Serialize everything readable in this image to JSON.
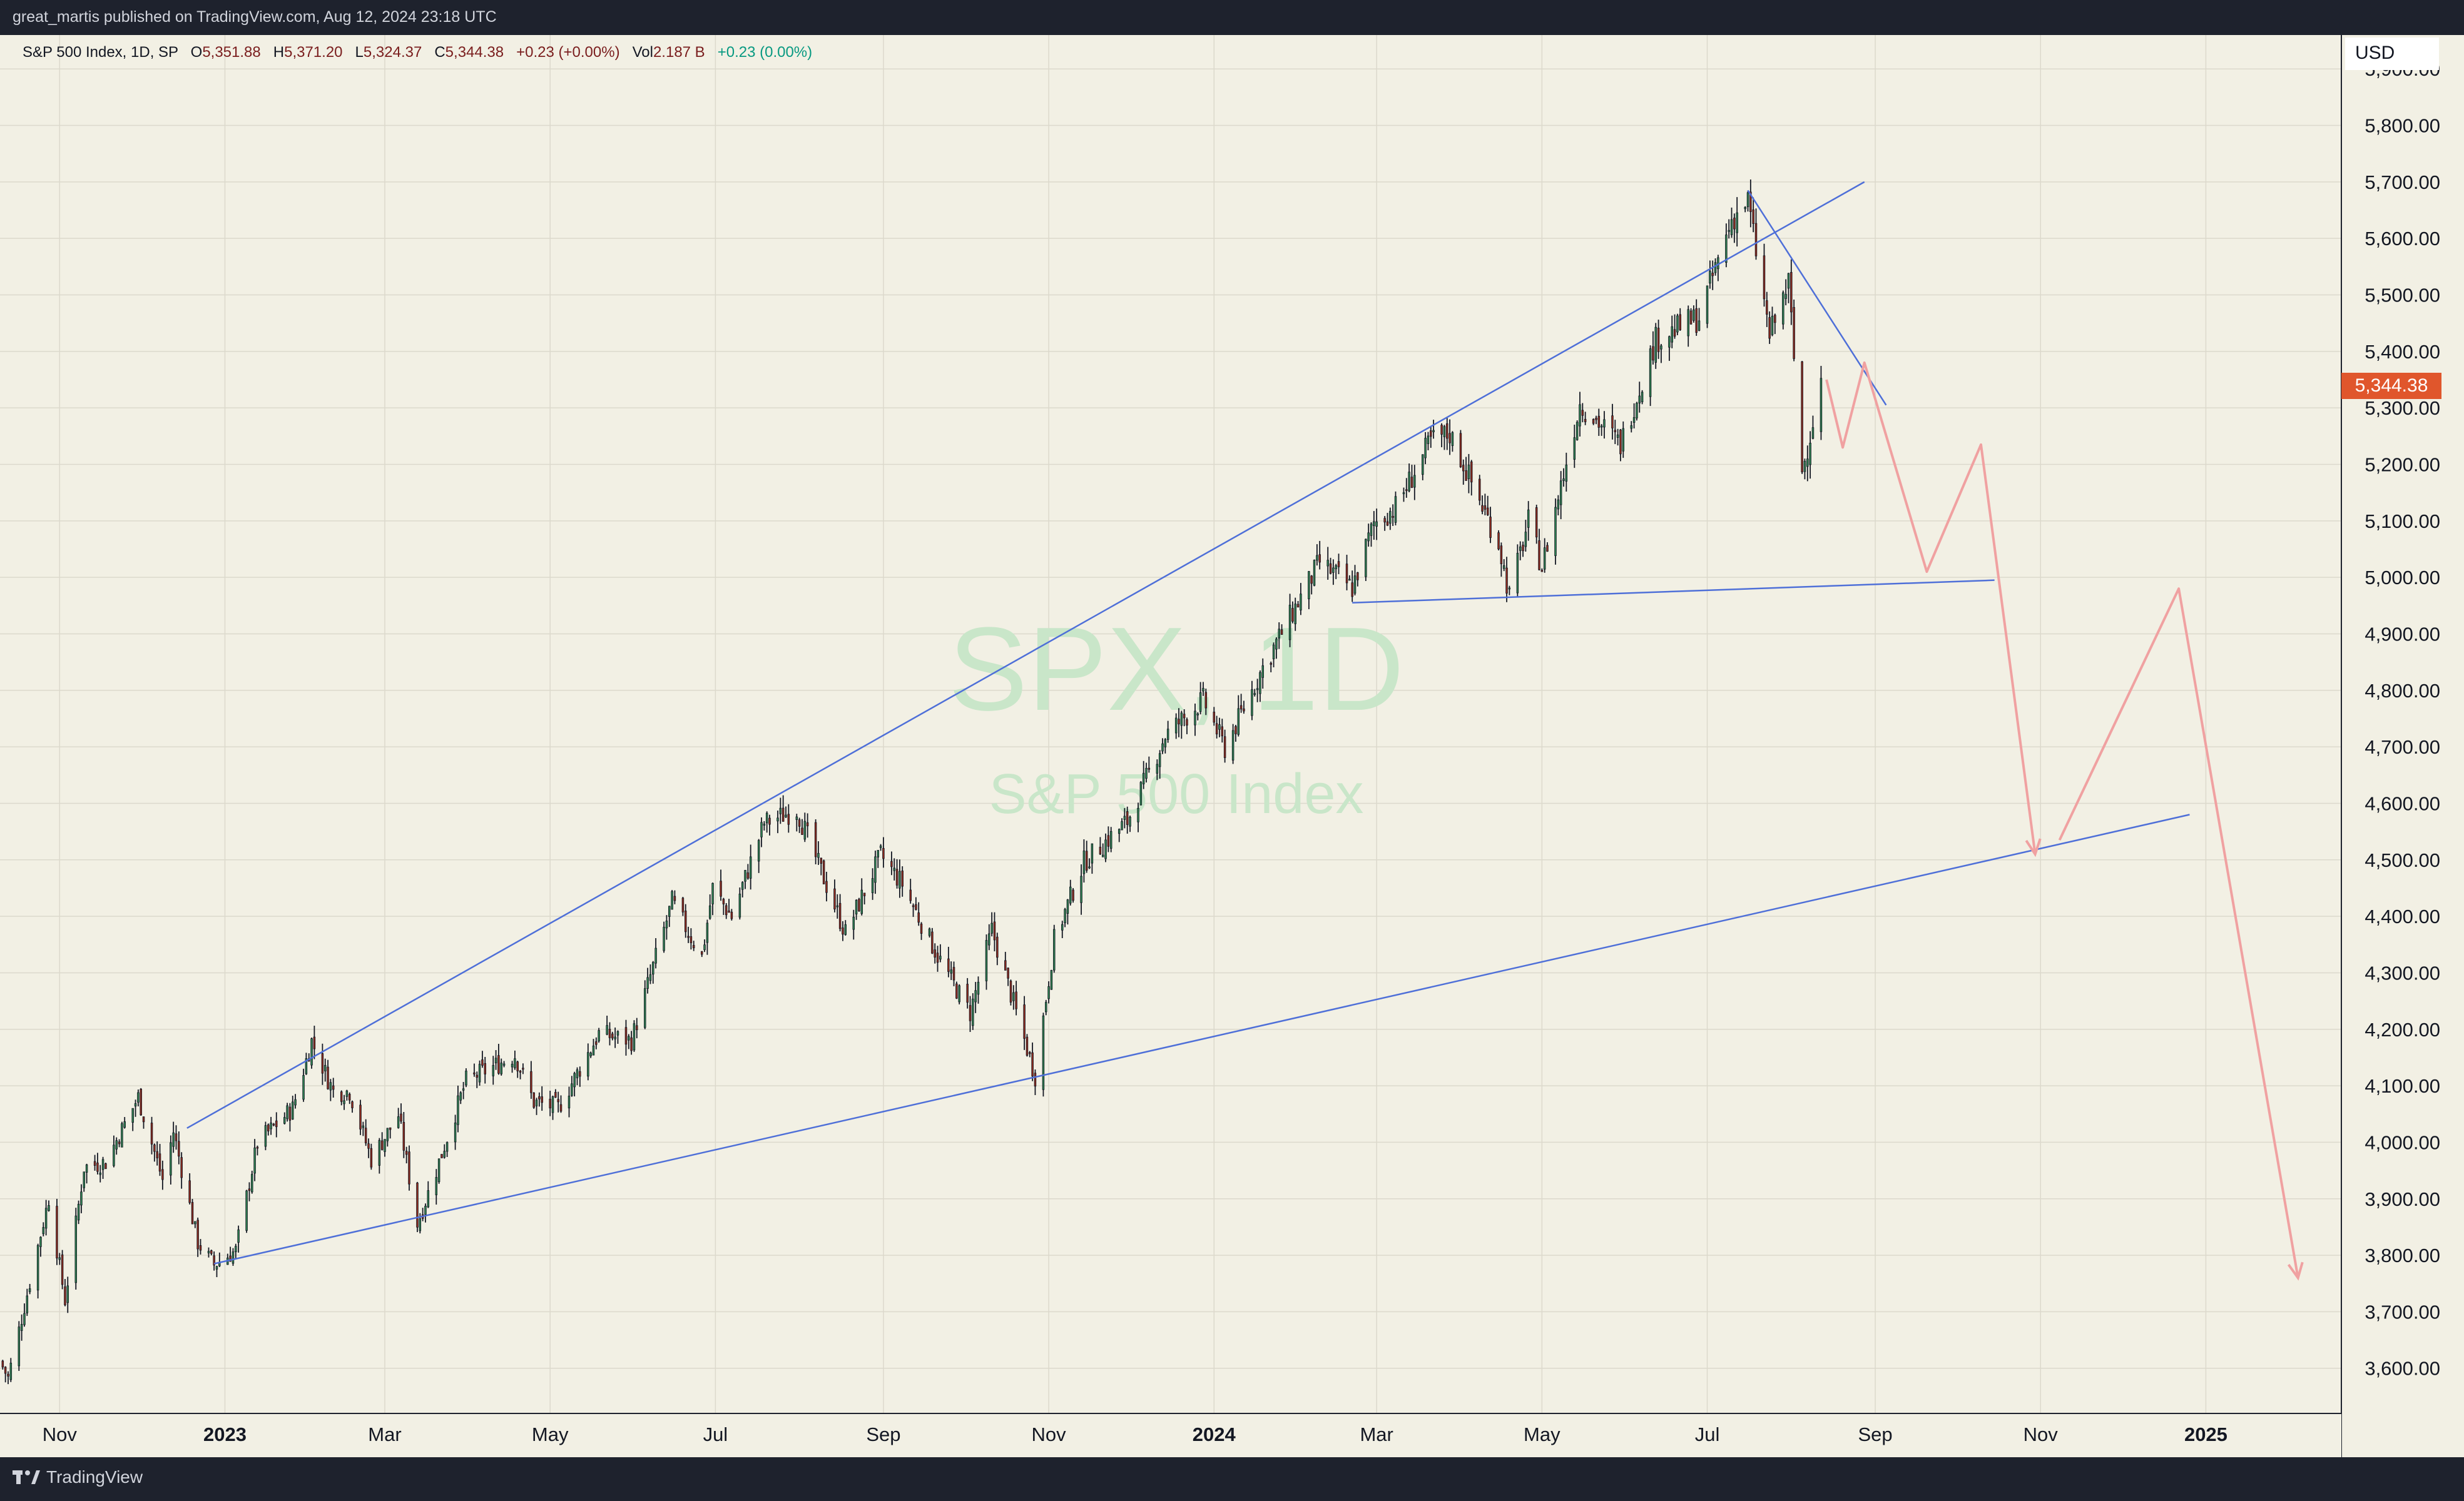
{
  "header": {
    "attribution": "great_martis published on TradingView.com, Aug 12, 2024 23:18 UTC"
  },
  "legend": {
    "symbol": "S&P 500 Index, 1D, SP",
    "open_label": "O",
    "open": "5,351.88",
    "high_label": "H",
    "high": "5,371.20",
    "low_label": "L",
    "low": "5,324.37",
    "close_label": "C",
    "close": "5,344.38",
    "change": "+0.23 (+0.00%)",
    "vol_label": "Vol",
    "vol": "2.187 B",
    "change2": "+0.23 (0.00%)"
  },
  "price_axis": {
    "currency": "USD",
    "current_price": "5,344.38"
  },
  "watermark": {
    "ticker": "SPX, 1D",
    "name": "S&P 500 Index"
  },
  "footer": {
    "brand": "TradingView"
  },
  "colors": {
    "background": "#f2f0e4",
    "grid": "#dcd9cc",
    "up": "#2e7d4f",
    "down": "#8b2a1e",
    "trendline": "#4e6fd8",
    "projection": "#f0a1a1",
    "price_badge": "#e0562c",
    "watermark": "#c9e6c9"
  },
  "chart_data": {
    "type": "candlestick",
    "title": "S&P 500 Index, 1D, SP",
    "x_tick_labels": [
      "Nov",
      "2023",
      "Mar",
      "May",
      "Jul",
      "Sep",
      "Nov",
      "2024",
      "Mar",
      "May",
      "Jul",
      "Sep",
      "Nov",
      "2025"
    ],
    "x_ticks": [
      "2022-11-01",
      "2023-01-01",
      "2023-03-01",
      "2023-05-01",
      "2023-07-01",
      "2023-09-01",
      "2023-11-01",
      "2024-01-01",
      "2024-03-01",
      "2024-05-01",
      "2024-07-01",
      "2024-09-01",
      "2024-11-01",
      "2025-01-01"
    ],
    "y_tick_labels": [
      "3,600.00",
      "3,700.00",
      "3,800.00",
      "3,900.00",
      "4,000.00",
      "4,100.00",
      "4,200.00",
      "4,300.00",
      "4,400.00",
      "4,500.00",
      "4,600.00",
      "4,700.00",
      "4,800.00",
      "4,900.00",
      "5,000.00",
      "5,100.00",
      "5,200.00",
      "5,300.00",
      "5,400.00",
      "5,500.00",
      "5,600.00",
      "5,700.00",
      "5,800.00",
      "5,900.00"
    ],
    "xlim": [
      "2022-10-10",
      "2025-02-20"
    ],
    "ylim": [
      3520,
      5960
    ],
    "grid": true,
    "close_path": [
      [
        "2022-10-10",
        3612
      ],
      [
        "2022-10-13",
        3583
      ],
      [
        "2022-10-21",
        3752
      ],
      [
        "2022-10-28",
        3901
      ],
      [
        "2022-11-03",
        3720
      ],
      [
        "2022-11-10",
        3956
      ],
      [
        "2022-11-18",
        3965
      ],
      [
        "2022-11-30",
        4080
      ],
      [
        "2022-12-09",
        3934
      ],
      [
        "2022-12-13",
        4019
      ],
      [
        "2022-12-22",
        3822
      ],
      [
        "2022-12-28",
        3783
      ],
      [
        "2023-01-05",
        3808
      ],
      [
        "2023-01-13",
        3999
      ],
      [
        "2023-01-26",
        4060
      ],
      [
        "2023-02-02",
        4179
      ],
      [
        "2023-02-10",
        4090
      ],
      [
        "2023-02-16",
        4090
      ],
      [
        "2023-02-24",
        3970
      ],
      [
        "2023-03-06",
        4048
      ],
      [
        "2023-03-13",
        3855
      ],
      [
        "2023-03-20",
        3951
      ],
      [
        "2023-03-31",
        4109
      ],
      [
        "2023-04-18",
        4154
      ],
      [
        "2023-04-25",
        4071
      ],
      [
        "2023-05-04",
        4061
      ],
      [
        "2023-05-19",
        4192
      ],
      [
        "2023-05-31",
        4180
      ],
      [
        "2023-06-15",
        4425
      ],
      [
        "2023-06-26",
        4328
      ],
      [
        "2023-06-30",
        4450
      ],
      [
        "2023-07-07",
        4399
      ],
      [
        "2023-07-19",
        4565
      ],
      [
        "2023-07-31",
        4589
      ],
      [
        "2023-08-18",
        4370
      ],
      [
        "2023-08-31",
        4508
      ],
      [
        "2023-09-08",
        4457
      ],
      [
        "2023-09-21",
        4330
      ],
      [
        "2023-10-03",
        4229
      ],
      [
        "2023-10-11",
        4376
      ],
      [
        "2023-10-27",
        4117
      ],
      [
        "2023-11-03",
        4358
      ],
      [
        "2023-11-14",
        4496
      ],
      [
        "2023-11-30",
        4568
      ],
      [
        "2023-12-14",
        4720
      ],
      [
        "2023-12-28",
        4783
      ],
      [
        "2024-01-05",
        4697
      ],
      [
        "2024-01-19",
        4840
      ],
      [
        "2024-02-09",
        5027
      ],
      [
        "2024-02-21",
        4981
      ],
      [
        "2024-02-29",
        5096
      ],
      [
        "2024-03-08",
        5124
      ],
      [
        "2024-03-21",
        5241
      ],
      [
        "2024-03-28",
        5254
      ],
      [
        "2024-04-15",
        5061
      ],
      [
        "2024-04-19",
        4967
      ],
      [
        "2024-04-26",
        5099
      ],
      [
        "2024-05-01",
        5018
      ],
      [
        "2024-05-15",
        5308
      ],
      [
        "2024-05-30",
        5235
      ],
      [
        "2024-06-12",
        5421
      ],
      [
        "2024-06-28",
        5460
      ],
      [
        "2024-07-10",
        5633
      ],
      [
        "2024-07-16",
        5667
      ],
      [
        "2024-07-24",
        5427
      ],
      [
        "2024-07-31",
        5522
      ],
      [
        "2024-08-05",
        5186
      ],
      [
        "2024-08-12",
        5344.38
      ]
    ],
    "trendlines": [
      {
        "from": [
          "2022-12-18",
          4025
        ],
        "to": [
          "2024-08-28",
          5700
        ]
      },
      {
        "from": [
          "2022-12-28",
          3785
        ],
        "to": [
          "2024-12-26",
          4580
        ]
      },
      {
        "from": [
          "2024-02-21",
          4955
        ],
        "to": [
          "2024-10-15",
          4995
        ]
      },
      {
        "from": [
          "2024-07-16",
          5685
        ],
        "to": [
          "2024-09-05",
          5305
        ]
      }
    ],
    "projection": [
      [
        "2024-08-14",
        5350
      ],
      [
        "2024-08-20",
        5230
      ],
      [
        "2024-08-28",
        5380
      ],
      [
        "2024-09-20",
        5010
      ],
      [
        "2024-10-10",
        5235
      ],
      [
        "2024-10-30",
        4510
      ],
      [
        "2024-11-08",
        4535
      ],
      [
        "2024-12-22",
        4980
      ],
      [
        "2025-02-04",
        3760
      ]
    ]
  }
}
